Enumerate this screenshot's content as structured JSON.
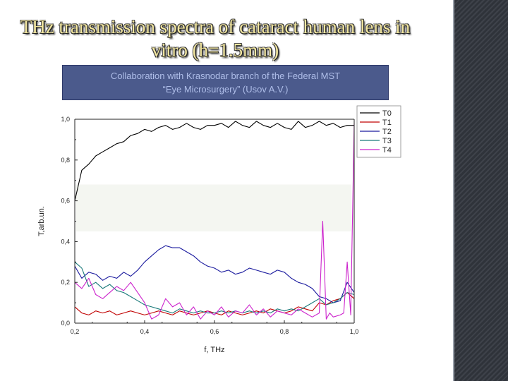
{
  "slide": {
    "title": "THz transmission spectra of cataract human lens in vitro (h=1.5mm)",
    "collaboration_line1": "Collaboration with Krasnodar branch of the Federal MST",
    "collaboration_line2": "“Eye Microsurgery” (Usov A.V.)"
  },
  "colors": {
    "T0": "#000000",
    "T1": "#c00000",
    "T2": "#1a1a9e",
    "T3": "#1a7a7a",
    "T4": "#cc22cc",
    "title_text": "#f3e7a0",
    "box_bg": "#4b5a8c"
  },
  "chart_data": {
    "type": "line",
    "xlabel": "f, THz",
    "ylabel": "T,arb.un.",
    "xlim": [
      0.2,
      1.0
    ],
    "ylim": [
      0.0,
      1.0
    ],
    "x_ticks": [
      "0,2",
      "0,4",
      "0,6",
      "0,8",
      "1,0"
    ],
    "y_ticks": [
      "0,0",
      "0,2",
      "0,4",
      "0,6",
      "0,8",
      "1,0"
    ],
    "legend": [
      "T0",
      "T1",
      "T2",
      "T3",
      "T4"
    ],
    "series": [
      {
        "name": "T0",
        "x": [
          0.2,
          0.22,
          0.24,
          0.26,
          0.28,
          0.3,
          0.32,
          0.34,
          0.36,
          0.38,
          0.4,
          0.42,
          0.44,
          0.46,
          0.48,
          0.5,
          0.52,
          0.54,
          0.56,
          0.58,
          0.6,
          0.62,
          0.64,
          0.66,
          0.68,
          0.7,
          0.72,
          0.74,
          0.76,
          0.78,
          0.8,
          0.82,
          0.84,
          0.86,
          0.88,
          0.9,
          0.92,
          0.94,
          0.96,
          0.98,
          1.0
        ],
        "values": [
          0.6,
          0.75,
          0.78,
          0.82,
          0.84,
          0.86,
          0.88,
          0.89,
          0.92,
          0.93,
          0.95,
          0.94,
          0.96,
          0.97,
          0.95,
          0.96,
          0.98,
          0.96,
          0.95,
          0.97,
          0.97,
          0.98,
          0.96,
          0.99,
          0.97,
          0.96,
          0.99,
          0.97,
          0.96,
          0.98,
          0.96,
          0.95,
          0.99,
          0.96,
          0.97,
          0.99,
          0.97,
          0.98,
          0.96,
          0.97,
          0.97
        ]
      },
      {
        "name": "T1",
        "x": [
          0.2,
          0.22,
          0.24,
          0.26,
          0.28,
          0.3,
          0.32,
          0.34,
          0.36,
          0.38,
          0.4,
          0.42,
          0.44,
          0.46,
          0.48,
          0.5,
          0.52,
          0.54,
          0.56,
          0.58,
          0.6,
          0.62,
          0.64,
          0.66,
          0.68,
          0.7,
          0.72,
          0.74,
          0.76,
          0.78,
          0.8,
          0.82,
          0.84,
          0.86,
          0.88,
          0.9,
          0.92,
          0.94,
          0.96,
          0.98,
          1.0
        ],
        "values": [
          0.08,
          0.05,
          0.04,
          0.06,
          0.05,
          0.06,
          0.04,
          0.05,
          0.06,
          0.05,
          0.04,
          0.05,
          0.06,
          0.05,
          0.04,
          0.06,
          0.05,
          0.04,
          0.05,
          0.06,
          0.05,
          0.04,
          0.06,
          0.05,
          0.04,
          0.05,
          0.06,
          0.05,
          0.07,
          0.06,
          0.05,
          0.06,
          0.08,
          0.07,
          0.06,
          0.1,
          0.09,
          0.11,
          0.12,
          0.15,
          0.12
        ]
      },
      {
        "name": "T2",
        "x": [
          0.2,
          0.22,
          0.24,
          0.26,
          0.28,
          0.3,
          0.32,
          0.34,
          0.36,
          0.38,
          0.4,
          0.42,
          0.44,
          0.46,
          0.48,
          0.5,
          0.52,
          0.54,
          0.56,
          0.58,
          0.6,
          0.62,
          0.64,
          0.66,
          0.68,
          0.7,
          0.72,
          0.74,
          0.76,
          0.78,
          0.8,
          0.82,
          0.84,
          0.86,
          0.88,
          0.9,
          0.92,
          0.94,
          0.96,
          0.98,
          1.0
        ],
        "values": [
          0.28,
          0.22,
          0.25,
          0.24,
          0.21,
          0.23,
          0.22,
          0.25,
          0.23,
          0.26,
          0.3,
          0.33,
          0.36,
          0.38,
          0.37,
          0.37,
          0.35,
          0.33,
          0.3,
          0.28,
          0.27,
          0.25,
          0.26,
          0.24,
          0.25,
          0.27,
          0.26,
          0.25,
          0.24,
          0.26,
          0.25,
          0.22,
          0.2,
          0.19,
          0.17,
          0.13,
          0.12,
          0.1,
          0.11,
          0.2,
          0.15
        ]
      },
      {
        "name": "T3",
        "x": [
          0.2,
          0.22,
          0.24,
          0.26,
          0.28,
          0.3,
          0.32,
          0.34,
          0.36,
          0.38,
          0.4,
          0.42,
          0.44,
          0.46,
          0.48,
          0.5,
          0.52,
          0.54,
          0.56,
          0.58,
          0.6,
          0.62,
          0.64,
          0.66,
          0.68,
          0.7,
          0.72,
          0.74,
          0.76,
          0.78,
          0.8,
          0.82,
          0.84,
          0.86,
          0.88,
          0.9,
          0.92,
          0.94,
          0.96,
          0.98,
          1.0
        ],
        "values": [
          0.3,
          0.27,
          0.18,
          0.2,
          0.17,
          0.19,
          0.16,
          0.15,
          0.13,
          0.11,
          0.09,
          0.08,
          0.07,
          0.06,
          0.05,
          0.07,
          0.06,
          0.05,
          0.06,
          0.05,
          0.05,
          0.06,
          0.05,
          0.06,
          0.05,
          0.06,
          0.05,
          0.06,
          0.05,
          0.07,
          0.06,
          0.07,
          0.06,
          0.08,
          0.1,
          0.12,
          0.09,
          0.1,
          0.12,
          0.15,
          0.14
        ]
      },
      {
        "name": "T4",
        "x": [
          0.2,
          0.22,
          0.24,
          0.26,
          0.28,
          0.3,
          0.32,
          0.34,
          0.36,
          0.38,
          0.4,
          0.42,
          0.44,
          0.46,
          0.48,
          0.5,
          0.52,
          0.54,
          0.56,
          0.58,
          0.6,
          0.62,
          0.64,
          0.66,
          0.68,
          0.7,
          0.72,
          0.74,
          0.76,
          0.78,
          0.8,
          0.82,
          0.84,
          0.86,
          0.88,
          0.9,
          0.91,
          0.92,
          0.93,
          0.94,
          0.96,
          0.97,
          0.98,
          0.99,
          1.0
        ],
        "values": [
          0.2,
          0.17,
          0.22,
          0.14,
          0.12,
          0.15,
          0.18,
          0.16,
          0.2,
          0.15,
          0.1,
          0.02,
          0.04,
          0.12,
          0.08,
          0.1,
          0.04,
          0.08,
          0.02,
          0.06,
          0.04,
          0.08,
          0.03,
          0.06,
          0.05,
          0.09,
          0.04,
          0.07,
          0.03,
          0.06,
          0.05,
          0.04,
          0.07,
          0.05,
          0.03,
          0.05,
          0.5,
          0.02,
          0.05,
          0.03,
          0.04,
          0.05,
          0.3,
          0.04,
          0.98
        ]
      }
    ]
  }
}
